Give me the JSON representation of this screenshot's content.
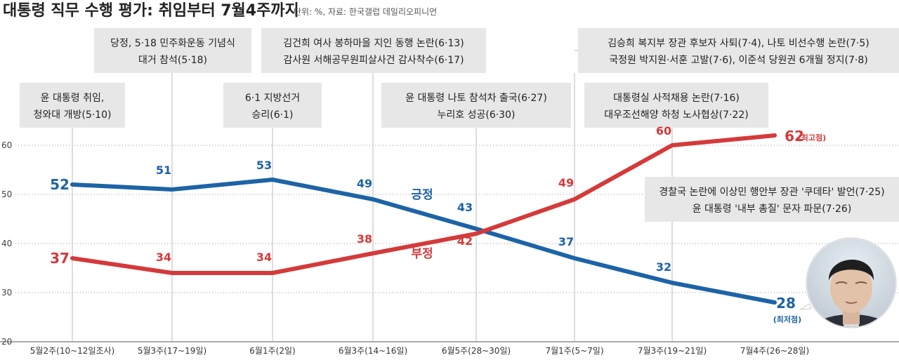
{
  "title": "대통령 직무 수행 평가: 취임부터 7월4주까지",
  "source": "단위: %, 자료: 한국갤럽 데일리오피니언",
  "chart_data": {
    "type": "line",
    "title": "대통령 직무 수행 평가: 취임부터 7월4주까지",
    "ylabel": "%",
    "ylim": [
      20,
      64
    ],
    "yticks": [
      "20",
      "30",
      "40",
      "50",
      "60"
    ],
    "categories": [
      "5월2주(10~12일조사)",
      "5월3주(17~19일)",
      "6월1주(2일)",
      "6월3주(14~16일)",
      "6월5주(28~30일)",
      "7월1주(5~7일)",
      "7월3주(19~21일)",
      "7월4주(26~28일)"
    ],
    "series": [
      {
        "name": "긍정",
        "color": "#1d63a6",
        "values": [
          52,
          51,
          53,
          49,
          43,
          37,
          32,
          28
        ],
        "labels": [
          "52",
          "51",
          "53",
          "49",
          "43",
          "37",
          "32",
          "28"
        ]
      },
      {
        "name": "부정",
        "color": "#d43a3a",
        "values": [
          37,
          34,
          34,
          38,
          42,
          49,
          60,
          62
        ],
        "labels": [
          "37",
          "34",
          "34",
          "38",
          "42",
          "49",
          "60",
          "62"
        ]
      }
    ],
    "notes": {
      "max_note": "(최고점)",
      "min_note": "(최저점)"
    }
  },
  "annotations": [
    {
      "id": "a1",
      "lines": [
        "윤 대통령 취임,",
        "청와대 개방(5·10)"
      ]
    },
    {
      "id": "a2",
      "lines": [
        "당정, 5·18 민주화운동 기념식",
        "대거 참석(5·18)"
      ]
    },
    {
      "id": "a3",
      "lines": [
        "6·1 지방선거",
        "승리(6·1)"
      ]
    },
    {
      "id": "a4",
      "lines": [
        "김건희 여사 봉하마을 지인 동행 논란(6·13)",
        "감사원 서해공무원피살사건 감사착수(6·17)"
      ]
    },
    {
      "id": "a5",
      "lines": [
        "윤 대통령 나토 참석차 출국(6·27)",
        "누리호 성공(6·30)"
      ]
    },
    {
      "id": "a6",
      "lines": [
        "김승희 복지부 장관 후보자 사퇴(7·4), 나토 비선수행 논란(7·5)",
        "국정원 박지원·서훈 고발(7·6), 이준석 당원권 6개월 정지(7·8)"
      ]
    },
    {
      "id": "a7",
      "lines": [
        "대통령실 사적채용 논란(7·16)",
        "대우조선해양 하청 노사협상(7·22)"
      ]
    },
    {
      "id": "a8",
      "lines": [
        "경찰국 논란에 이상민 행안부 장관 '쿠데타' 발언(7·25)",
        "윤 대통령 '내부 총질' 문자 파문(7·26)"
      ]
    }
  ],
  "colors": {
    "positive": "#1d63a6",
    "negative": "#d43a3a",
    "box": "#e7e7e7"
  }
}
